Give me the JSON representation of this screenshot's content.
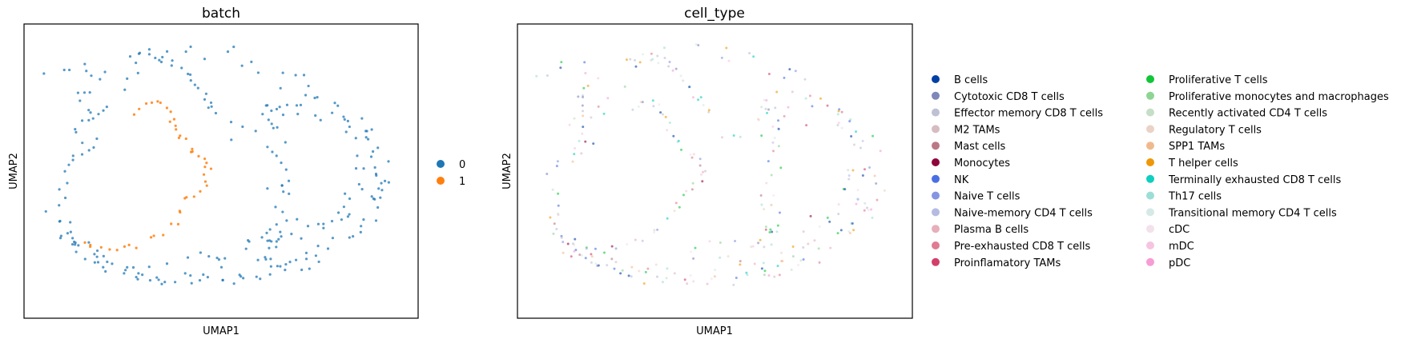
{
  "chart_data": [
    {
      "type": "scatter",
      "title": "batch",
      "xlabel": "UMAP1",
      "ylabel": "UMAP2",
      "xticks": "none",
      "yticks": "none",
      "grid": false,
      "legend_placement": "right",
      "series": [
        {
          "name": "0",
          "color": "#1f77b4"
        },
        {
          "name": "1",
          "color": "#ff7f0e"
        }
      ]
    },
    {
      "type": "scatter",
      "title": "cell_type",
      "xlabel": "UMAP1",
      "ylabel": "UMAP2",
      "xticks": "none",
      "yticks": "none",
      "grid": false,
      "legend_placement": "right",
      "series": [
        {
          "name": "B cells",
          "color": "#023fa5"
        },
        {
          "name": "Cytotoxic CD8 T cells",
          "color": "#7d87b9"
        },
        {
          "name": "Effector memory CD8 T cells",
          "color": "#bec1d4"
        },
        {
          "name": "M2 TAMs",
          "color": "#d6bcc0"
        },
        {
          "name": "Mast cells",
          "color": "#bb7784"
        },
        {
          "name": "Monocytes",
          "color": "#8e063b"
        },
        {
          "name": "NK",
          "color": "#4a6fe3"
        },
        {
          "name": "Naive T cells",
          "color": "#8595e1"
        },
        {
          "name": "Naive-memory CD4 T cells",
          "color": "#b5bbe3"
        },
        {
          "name": "Plasma B cells",
          "color": "#e6afb9"
        },
        {
          "name": "Pre-exhausted CD8 T cells",
          "color": "#e07b91"
        },
        {
          "name": "Proinflamatory TAMs",
          "color": "#d33f6a"
        },
        {
          "name": "Proliferative T cells",
          "color": "#11c638"
        },
        {
          "name": "Proliferative monocytes and macrophages",
          "color": "#8dd593"
        },
        {
          "name": "Recently activated CD4 T cells",
          "color": "#c6dec7"
        },
        {
          "name": "Regulatory T cells",
          "color": "#ead3c6"
        },
        {
          "name": "SPP1 TAMs",
          "color": "#f0b98d"
        },
        {
          "name": "T helper cells",
          "color": "#ef9708"
        },
        {
          "name": "Terminally exhausted CD8 T cells",
          "color": "#0fcfc0"
        },
        {
          "name": "Th17 cells",
          "color": "#9cded6"
        },
        {
          "name": "Transitional memory CD4 T cells",
          "color": "#d5eae7"
        },
        {
          "name": "cDC",
          "color": "#f3e1eb"
        },
        {
          "name": "mDC",
          "color": "#f6c4e1"
        },
        {
          "name": "pDC",
          "color": "#f79cd4"
        }
      ]
    }
  ]
}
